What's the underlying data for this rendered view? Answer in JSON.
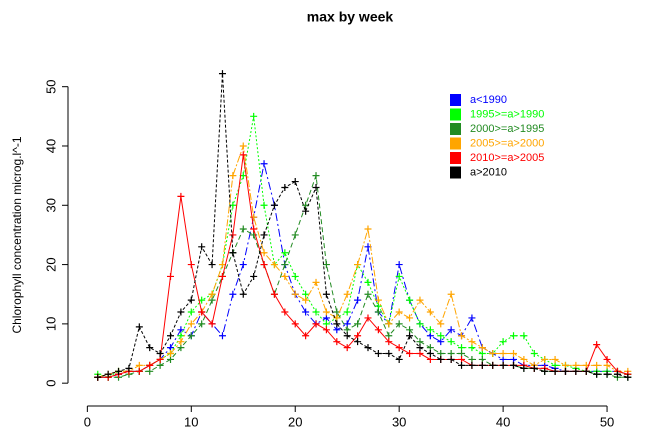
{
  "chart_data": {
    "type": "line",
    "title": "max by week",
    "ylabel": "Chlorophyll concentration microg.l^-1",
    "x": [
      1,
      2,
      3,
      4,
      5,
      6,
      7,
      8,
      9,
      10,
      11,
      12,
      13,
      14,
      15,
      16,
      17,
      18,
      19,
      20,
      21,
      22,
      23,
      24,
      25,
      26,
      27,
      28,
      29,
      30,
      31,
      32,
      33,
      34,
      35,
      36,
      37,
      38,
      39,
      40,
      41,
      42,
      43,
      44,
      45,
      46,
      47,
      48,
      49,
      50,
      51,
      52
    ],
    "xlim": [
      -0.9,
      52.4
    ],
    "xticks": [
      0,
      10,
      20,
      30,
      40,
      50
    ],
    "ylim": [
      -2.5,
      54.5
    ],
    "yticks": [
      0,
      10,
      20,
      30,
      40,
      50
    ],
    "legend": "top-right",
    "series": [
      {
        "name": "a<1990",
        "color": "#0000ff",
        "dash": "8 3 2 3",
        "values": [
          1,
          1,
          1.5,
          2,
          2,
          3,
          4,
          6,
          9,
          8,
          12,
          10,
          8,
          15,
          20,
          28,
          37,
          30,
          20,
          15,
          12,
          10,
          11,
          9,
          10,
          14,
          23,
          12,
          10,
          20,
          14,
          10,
          8,
          7,
          9,
          8,
          11,
          6,
          5,
          4,
          4,
          3,
          3,
          3,
          2.5,
          2,
          2,
          2,
          2,
          2,
          2,
          1.5
        ]
      },
      {
        "name": "1995>=a>1990",
        "color": "#00ff00",
        "dash": "2 2",
        "values": [
          1.5,
          1,
          2,
          2,
          2,
          3,
          4,
          5,
          8,
          12,
          14,
          15,
          20,
          30,
          35,
          45,
          30,
          20,
          22,
          18,
          15,
          12,
          10,
          11,
          12,
          20,
          17,
          13,
          10,
          18,
          14,
          10,
          9,
          8,
          7,
          6,
          6,
          5,
          5,
          7,
          8,
          8,
          5,
          4,
          3,
          3,
          2.5,
          2,
          2,
          2,
          2,
          1.5
        ]
      },
      {
        "name": "2000>=a>1995",
        "color": "#228b22",
        "dash": "5 3",
        "values": [
          1,
          1,
          1,
          1.5,
          2,
          2,
          3,
          4,
          6,
          8,
          10,
          14,
          18,
          22,
          26,
          25,
          20,
          15,
          20,
          25,
          30,
          35,
          20,
          12,
          9,
          10,
          15,
          12,
          8,
          10,
          9,
          7,
          6,
          5,
          5,
          5,
          4,
          4,
          3,
          3,
          3,
          2.5,
          2.5,
          2,
          2,
          2,
          2,
          2,
          1.5,
          1.5,
          1,
          1
        ]
      },
      {
        "name": "2005>=a>2000",
        "color": "#ffa500",
        "dash": "7 2 2 2",
        "values": [
          1,
          1.5,
          2,
          2,
          3,
          3,
          4,
          5,
          7,
          10,
          12,
          15,
          20,
          35,
          40,
          28,
          22,
          20,
          18,
          15,
          14,
          17,
          12,
          11,
          15,
          20,
          26,
          14,
          10,
          12,
          11,
          14,
          12,
          10,
          15,
          8,
          7,
          6,
          5,
          5,
          5,
          4,
          3,
          4,
          4,
          3,
          3,
          3,
          3,
          3,
          2,
          2
        ]
      },
      {
        "name": "2010>=a>2005",
        "color": "#ff0000",
        "dash": "none",
        "values": [
          1,
          1,
          1.5,
          2,
          2,
          3,
          4,
          18,
          31.5,
          20,
          12,
          10,
          18,
          25,
          38.5,
          26,
          20,
          15,
          12,
          10,
          8,
          10,
          9,
          7,
          6,
          8,
          11,
          9,
          7,
          6,
          5,
          5,
          4,
          4,
          4,
          4,
          3,
          3,
          3,
          3,
          3,
          3,
          2.5,
          2.5,
          2,
          2,
          2,
          2,
          6.5,
          4,
          2,
          1.5
        ]
      },
      {
        "name": "a>2010",
        "color": "#000000",
        "dash": "3 2",
        "values": [
          1,
          1.5,
          2,
          2.5,
          9.5,
          6,
          5,
          8,
          12,
          14,
          23,
          20,
          52.2,
          22,
          15,
          18,
          25,
          30,
          33,
          34,
          29,
          33,
          15,
          10,
          8,
          7,
          6,
          5,
          5,
          4,
          8,
          6,
          5,
          4,
          4,
          3,
          3,
          3,
          3,
          3,
          3,
          2.5,
          2.5,
          2,
          2,
          2,
          2,
          2,
          1.5,
          1.5,
          1.5,
          1
        ]
      }
    ]
  }
}
